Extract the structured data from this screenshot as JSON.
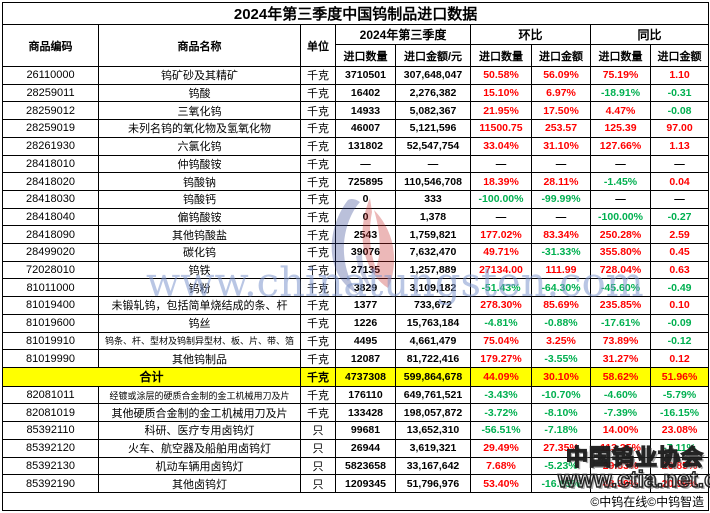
{
  "title": "2024年第三季度中国钨制品进口数据",
  "header": {
    "code": "商品编码",
    "name": "商品名称",
    "unit": "单位",
    "group_q3": "2024年第三季度",
    "group_hb": "环比",
    "group_tb": "同比",
    "qty": "进口数量",
    "amount_yuan": "进口金额/元",
    "amount": "进口金额"
  },
  "rows": [
    {
      "code": "26110000",
      "name": "钨矿砂及其精矿",
      "unit": "千克",
      "qty": "3710501",
      "amount": "307,648,047",
      "hb_qty": "50.58%",
      "hb_amount": "56.09%",
      "tb_qty": "75.19%",
      "tb_amount": "1.10",
      "total": false
    },
    {
      "code": "28259011",
      "name": "钨酸",
      "unit": "千克",
      "qty": "16402",
      "amount": "2,276,382",
      "hb_qty": "15.10%",
      "hb_amount": "6.97%",
      "tb_qty": "-18.91%",
      "tb_amount": "-0.31",
      "total": false
    },
    {
      "code": "28259012",
      "name": "三氧化钨",
      "unit": "千克",
      "qty": "14933",
      "amount": "5,082,367",
      "hb_qty": "21.95%",
      "hb_amount": "17.50%",
      "tb_qty": "4.47%",
      "tb_amount": "-0.08",
      "total": false
    },
    {
      "code": "28259019",
      "name": "未列名钨的氧化物及氢氧化物",
      "unit": "千克",
      "qty": "46007",
      "amount": "5,121,596",
      "hb_qty": "11500.75",
      "hb_amount": "253.57",
      "tb_qty": "125.39",
      "tb_amount": "97.00",
      "total": false
    },
    {
      "code": "28261930",
      "name": "六氯化钨",
      "unit": "千克",
      "qty": "131802",
      "amount": "52,547,754",
      "hb_qty": "33.04%",
      "hb_amount": "31.10%",
      "tb_qty": "127.66%",
      "tb_amount": "1.13",
      "total": false
    },
    {
      "code": "28418010",
      "name": "仲钨酸铵",
      "unit": "千克",
      "qty": "—",
      "amount": "—",
      "hb_qty": "—",
      "hb_amount": "—",
      "tb_qty": "—",
      "tb_amount": "—",
      "total": false
    },
    {
      "code": "28418020",
      "name": "钨酸钠",
      "unit": "千克",
      "qty": "725895",
      "amount": "110,546,708",
      "hb_qty": "18.39%",
      "hb_amount": "28.11%",
      "tb_qty": "-1.45%",
      "tb_amount": "0.04",
      "total": false
    },
    {
      "code": "28418030",
      "name": "钨酸钙",
      "unit": "千克",
      "qty": "0",
      "amount": "333",
      "hb_qty": "-100.00%",
      "hb_amount": "-99.99%",
      "tb_qty": "—",
      "tb_amount": "—",
      "total": false
    },
    {
      "code": "28418040",
      "name": "偏钨酸铵",
      "unit": "千克",
      "qty": "0",
      "amount": "1,378",
      "hb_qty": "—",
      "hb_amount": "—",
      "tb_qty": "-100.00%",
      "tb_amount": "-0.27",
      "total": false
    },
    {
      "code": "28418090",
      "name": "其他钨酸盐",
      "unit": "千克",
      "qty": "2543",
      "amount": "1,759,821",
      "hb_qty": "177.02%",
      "hb_amount": "83.34%",
      "tb_qty": "250.28%",
      "tb_amount": "2.59",
      "total": false
    },
    {
      "code": "28499020",
      "name": "碳化钨",
      "unit": "千克",
      "qty": "39076",
      "amount": "7,632,470",
      "hb_qty": "49.71%",
      "hb_amount": "-31.33%",
      "tb_qty": "355.80%",
      "tb_amount": "0.45",
      "total": false
    },
    {
      "code": "72028010",
      "name": "钨铁",
      "unit": "千克",
      "qty": "27135",
      "amount": "1,257,889",
      "hb_qty": "27134.00",
      "hb_amount": "111.99",
      "tb_qty": "728.04%",
      "tb_amount": "0.63",
      "total": false
    },
    {
      "code": "81011000",
      "name": "钨粉",
      "unit": "千克",
      "qty": "3829",
      "amount": "3,109,182",
      "hb_qty": "-51.43%",
      "hb_amount": "-64.30%",
      "tb_qty": "-45.60%",
      "tb_amount": "-0.49",
      "total": false
    },
    {
      "code": "81019400",
      "name": "未锻轧钨，包括简单烧结成的条、杆",
      "unit": "千克",
      "qty": "1377",
      "amount": "733,672",
      "hb_qty": "278.30%",
      "hb_amount": "85.69%",
      "tb_qty": "235.85%",
      "tb_amount": "0.10",
      "total": false
    },
    {
      "code": "81019600",
      "name": "钨丝",
      "unit": "千克",
      "qty": "1226",
      "amount": "15,763,184",
      "hb_qty": "-4.81%",
      "hb_amount": "-0.88%",
      "tb_qty": "-17.61%",
      "tb_amount": "-0.09",
      "total": false
    },
    {
      "code": "81019910",
      "name": "钨条、杆、型材及钨制异型材、板、片、带、箔",
      "unit": "千克",
      "qty": "4495",
      "amount": "4,661,479",
      "hb_qty": "75.04%",
      "hb_amount": "3.25%",
      "tb_qty": "73.89%",
      "tb_amount": "-0.12",
      "total": false
    },
    {
      "code": "81019990",
      "name": "其他钨制品",
      "unit": "千克",
      "qty": "12087",
      "amount": "81,722,416",
      "hb_qty": "179.27%",
      "hb_amount": "-3.55%",
      "tb_qty": "31.27%",
      "tb_amount": "0.12",
      "total": false
    },
    {
      "code": "",
      "name": "合计",
      "unit": "千克",
      "qty": "4737308",
      "amount": "599,864,678",
      "hb_qty": "44.09%",
      "hb_amount": "30.10%",
      "tb_qty": "58.62%",
      "tb_amount": "51.96%",
      "total": true
    },
    {
      "code": "82081011",
      "name": "经镀或涂层的硬质合金制的金工机械用刀及片",
      "unit": "千克",
      "qty": "176110",
      "amount": "649,761,521",
      "hb_qty": "-3.43%",
      "hb_amount": "-10.70%",
      "tb_qty": "-4.60%",
      "tb_amount": "-5.79%",
      "total": false
    },
    {
      "code": "82081019",
      "name": "其他硬质合金制的金工机械用刀及片",
      "unit": "千克",
      "qty": "133428",
      "amount": "198,057,872",
      "hb_qty": "-3.72%",
      "hb_amount": "-8.10%",
      "tb_qty": "-7.39%",
      "tb_amount": "-16.15%",
      "total": false
    },
    {
      "code": "85392110",
      "name": "科研、医疗专用卤钨灯",
      "unit": "只",
      "qty": "99681",
      "amount": "13,652,310",
      "hb_qty": "-56.51%",
      "hb_amount": "-7.18%",
      "tb_qty": "14.00%",
      "tb_amount": "23.08%",
      "total": false
    },
    {
      "code": "85392120",
      "name": "火车、航空器及船舶用卤钨灯",
      "unit": "只",
      "qty": "26944",
      "amount": "3,619,321",
      "hb_qty": "29.49%",
      "hb_amount": "27.35%",
      "tb_qty": "113.25%",
      "tb_amount": "-7.11%",
      "total": false
    },
    {
      "code": "85392130",
      "name": "机动车辆用卤钨灯",
      "unit": "只",
      "qty": "5823658",
      "amount": "33,167,642",
      "hb_qty": "7.68%",
      "hb_amount": "-5.23%",
      "tb_qty": "29.83%",
      "tb_amount": "26.85%",
      "total": false
    },
    {
      "code": "85392190",
      "name": "其他卤钨灯",
      "unit": "只",
      "qty": "1209345",
      "amount": "51,796,976",
      "hb_qty": "53.40%",
      "hb_amount": "-16.85%",
      "tb_qty": "48.39%",
      "tb_amount": "20.96%",
      "total": false
    }
  ],
  "footer": "©中钨在线©中钨智造",
  "watermarks": {
    "center_text": "www.chinatungsten.com",
    "assoc_name": "中国钨业协会",
    "assoc_url": "www.ctia.net.cn"
  },
  "colors": {
    "positive": "#FF0000",
    "negative": "#00B050",
    "neutral": "#000000",
    "total_bg": "#FFFF00",
    "title_underline": "#8b0000",
    "watermark_blue": "#8098cd"
  }
}
